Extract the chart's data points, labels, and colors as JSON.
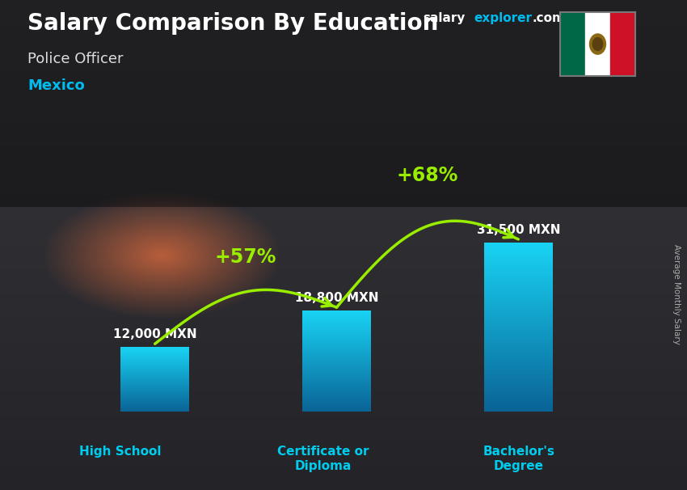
{
  "title": "Salary Comparison By Education",
  "subtitle": "Police Officer",
  "country": "Mexico",
  "site_name": "salary",
  "site_name2": "explorer",
  "site_ext": ".com",
  "ylabel": "Average Monthly Salary",
  "categories": [
    "High School",
    "Certificate or\nDiploma",
    "Bachelor's\nDegree"
  ],
  "values": [
    12000,
    18800,
    31500
  ],
  "value_labels": [
    "12,000 MXN",
    "18,800 MXN",
    "31,500 MXN"
  ],
  "pct_labels": [
    "+57%",
    "+68%"
  ],
  "bar_color_top": "#29d4f5",
  "bar_color_bottom": "#1a6e8a",
  "background_color": "#3a3a3a",
  "title_color": "#ffffff",
  "subtitle_color": "#dddddd",
  "country_color": "#00bbee",
  "value_color": "#ffffff",
  "pct_color": "#99ee00",
  "arrow_color": "#99ee00",
  "cat_label_color": "#00ccee",
  "site_color1": "#ffffff",
  "site_color2": "#00bbee",
  "flag_green": "#006847",
  "flag_white": "#ffffff",
  "flag_red": "#ce1126",
  "ylabel_color": "#aaaaaa"
}
